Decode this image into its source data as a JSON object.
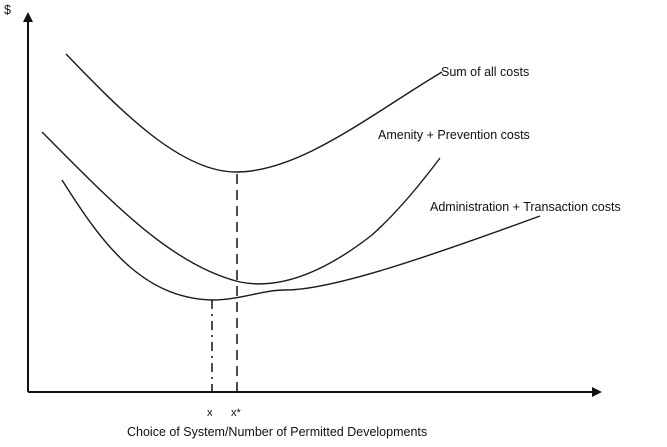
{
  "diagram": {
    "y_axis_label": "$",
    "x_axis_label": "Choice of System/Number of Permitted Developments",
    "x_markers": [
      {
        "label": "x"
      },
      {
        "label": "x*"
      }
    ],
    "curves": [
      {
        "label": "Sum of all costs"
      },
      {
        "label": "Amenity + Prevention costs"
      },
      {
        "label": "Administration + Transaction costs"
      }
    ]
  }
}
